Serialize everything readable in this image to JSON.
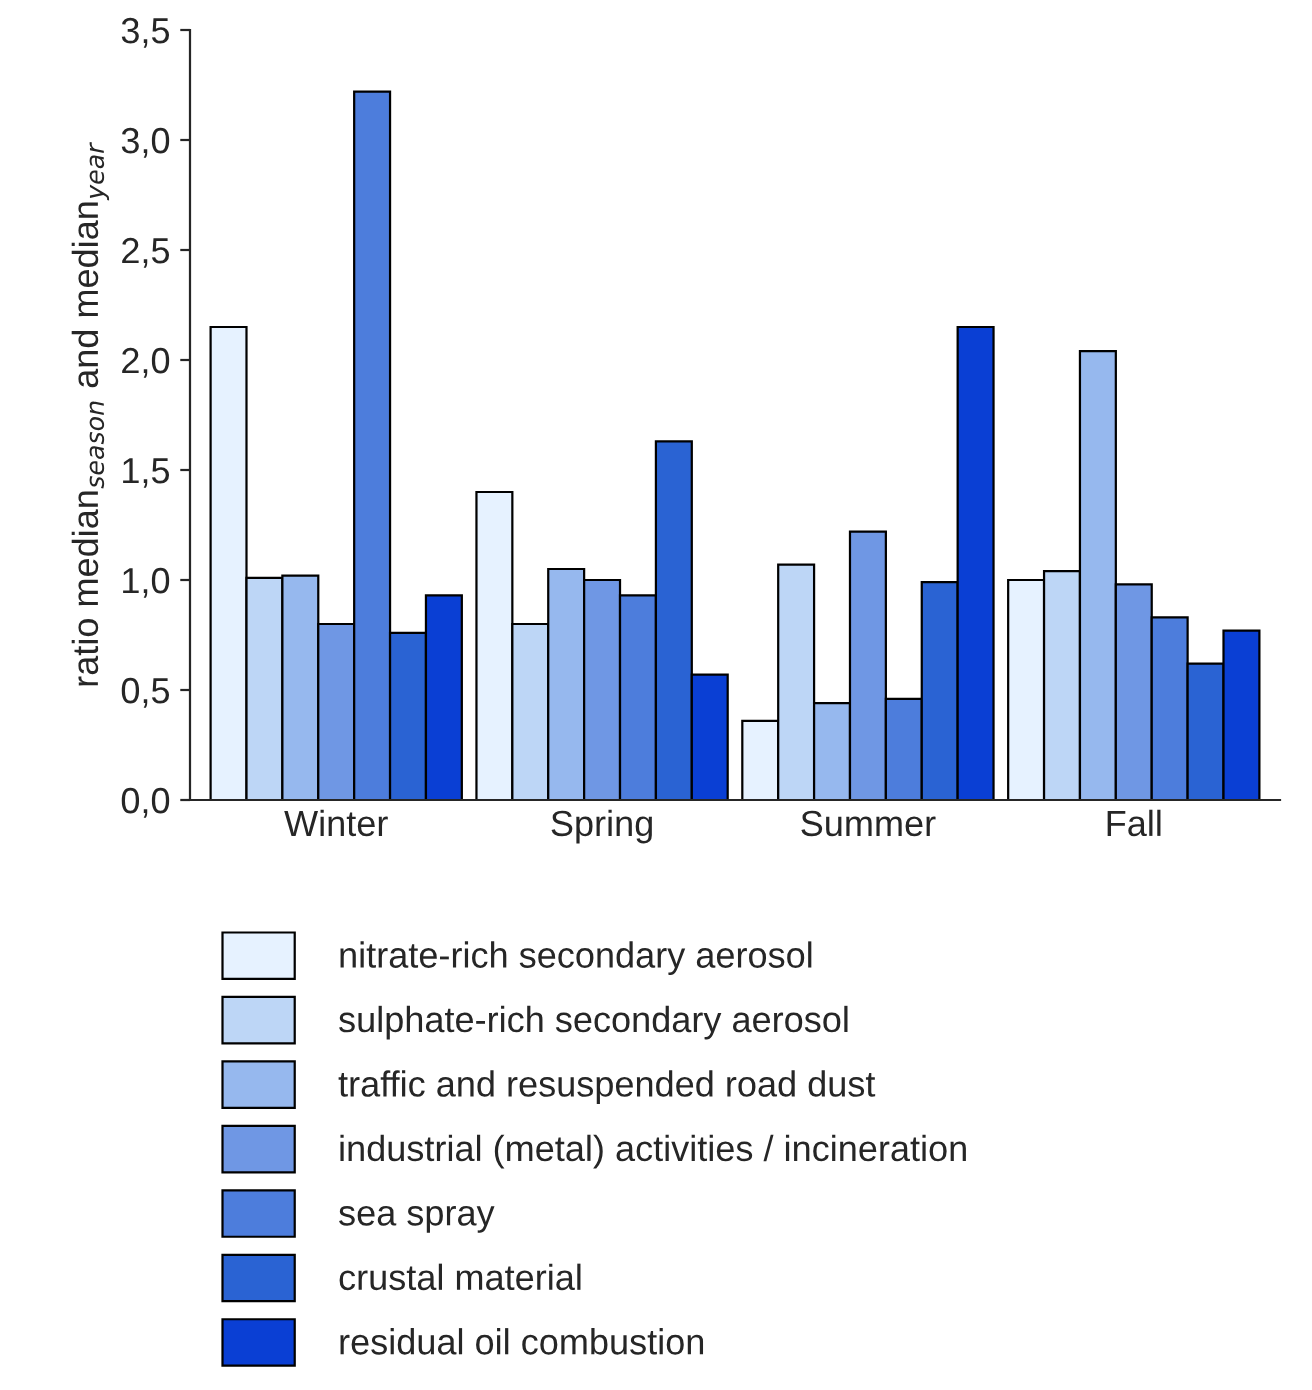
{
  "chart_data": {
    "type": "bar",
    "ylabel": "ratio median$_{season}$ and median$_{year}$",
    "categories": [
      "Winter",
      "Spring",
      "Summer",
      "Fall"
    ],
    "series": [
      {
        "name": "nitrate-rich secondary aerosol",
        "color": "#e6f2ff",
        "values": [
          2.15,
          1.4,
          0.36,
          1.0
        ]
      },
      {
        "name": "sulphate-rich secondary aerosol",
        "color": "#bdd6f6",
        "values": [
          1.01,
          0.8,
          1.07,
          1.04
        ]
      },
      {
        "name": "traffic and resuspended road dust",
        "color": "#96b8ee",
        "values": [
          1.02,
          1.05,
          0.44,
          2.04
        ]
      },
      {
        "name": "industrial (metal) activities / incineration",
        "color": "#6f97e4",
        "values": [
          0.8,
          1.0,
          1.22,
          0.98
        ]
      },
      {
        "name": "sea spray",
        "color": "#4d7ddc",
        "values": [
          3.22,
          0.93,
          0.46,
          0.83
        ]
      },
      {
        "name": "crustal material",
        "color": "#2a63d3",
        "values": [
          0.76,
          1.63,
          0.99,
          0.62
        ]
      },
      {
        "name": "residual oil combustion",
        "color": "#0a3fd4",
        "values": [
          0.93,
          0.57,
          2.15,
          0.77
        ]
      }
    ],
    "ylim": [
      0,
      3.5
    ],
    "yticks": [
      {
        "value": 0,
        "label": "0,0"
      },
      {
        "value": 0.5,
        "label": "0,5"
      },
      {
        "value": 1,
        "label": "1,0"
      },
      {
        "value": 1.5,
        "label": "1,5"
      },
      {
        "value": 2,
        "label": "2,0"
      },
      {
        "value": 2.5,
        "label": "2,5"
      },
      {
        "value": 3,
        "label": "3,0"
      },
      {
        "value": 3.5,
        "label": "3,5"
      }
    ],
    "grid": false,
    "legend": "bottom"
  }
}
